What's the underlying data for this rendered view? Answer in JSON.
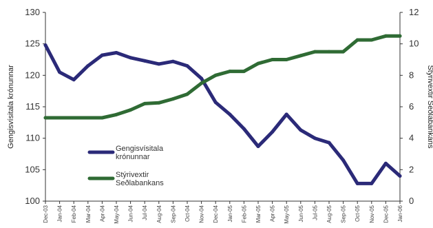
{
  "chart_data": {
    "type": "line",
    "x": [
      "Dec-03",
      "Jan-04",
      "Feb-04",
      "Mar-04",
      "Apr-04",
      "May-04",
      "Jun-04",
      "Jul-04",
      "Aug-04",
      "Sep-04",
      "Oct-04",
      "Nov-04",
      "Dec-04",
      "Jan-05",
      "Feb-05",
      "Mar-05",
      "Apr-05",
      "May-05",
      "Jun-05",
      "Jul-05",
      "Aug-05",
      "Sep-05",
      "Oct-05",
      "Nov-05",
      "Dec-05",
      "Jan-06"
    ],
    "y_left": {
      "label": "Gengisvísitala krónunnar",
      "lim": [
        100,
        130
      ],
      "ticks": [
        "100",
        "105",
        "110",
        "115",
        "120",
        "125",
        "130"
      ]
    },
    "y_right": {
      "label": "Stýrivextir Seðlabankans",
      "lim": [
        0,
        12
      ],
      "ticks": [
        "0",
        "2",
        "4",
        "6",
        "8",
        "10",
        "12"
      ]
    },
    "series": [
      {
        "name": "Gengisvísitala krónunnar",
        "axis": "left",
        "color": "#2b2a78",
        "values": [
          124.8,
          120.5,
          119.3,
          121.5,
          123.2,
          123.6,
          122.8,
          122.3,
          121.8,
          122.2,
          121.5,
          119.5,
          115.7,
          113.8,
          111.5,
          108.7,
          111.0,
          113.8,
          111.3,
          110.0,
          109.3,
          106.5,
          102.8,
          102.8,
          106.0,
          104.0
        ]
      },
      {
        "name": "Stýrivextir Seðlabankans",
        "axis": "right",
        "color": "#2f6b34",
        "values": [
          5.3,
          5.3,
          5.3,
          5.3,
          5.3,
          5.5,
          5.8,
          6.2,
          6.25,
          6.5,
          6.8,
          7.5,
          8.0,
          8.25,
          8.25,
          8.75,
          9.0,
          9.0,
          9.25,
          9.5,
          9.5,
          9.5,
          10.25,
          10.25,
          10.5,
          10.5
        ]
      }
    ],
    "legend": {
      "position": "bottom-left",
      "items": [
        {
          "label_lines": [
            "Gengisvísitala",
            "krónunnar"
          ],
          "color": "#2b2a78"
        },
        {
          "label_lines": [
            "Stýrivextir",
            "Seðlabankans"
          ],
          "color": "#2f6b34"
        }
      ]
    },
    "grid": false
  }
}
